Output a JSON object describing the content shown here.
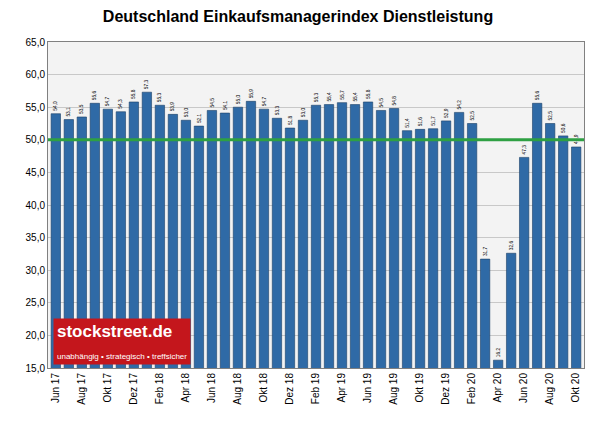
{
  "chart_data": {
    "type": "bar",
    "title": "Deutschland Einkaufsmanagerindex Dienstleistung",
    "categories": [
      "Jun 17",
      null,
      "Aug 17",
      null,
      "Okt 17",
      null,
      "Dez 17",
      null,
      "Feb 18",
      null,
      "Apr 18",
      null,
      "Jun 18",
      null,
      "Aug 18",
      null,
      "Okt 18",
      null,
      "Dez 18",
      null,
      "Feb 19",
      null,
      "Apr 19",
      null,
      "Jun 19",
      null,
      "Aug 19",
      null,
      "Okt 19",
      null,
      "Dez 19",
      null,
      "Feb 20",
      null,
      "Apr 20",
      null,
      "Jun 20",
      null,
      "Aug 20",
      null,
      "Okt 20"
    ],
    "values": [
      54.0,
      53.1,
      53.5,
      55.6,
      54.7,
      54.3,
      55.8,
      57.3,
      55.3,
      53.9,
      53.0,
      52.1,
      54.5,
      54.1,
      55.0,
      55.9,
      54.7,
      53.3,
      51.8,
      53.0,
      55.3,
      55.4,
      55.7,
      55.4,
      55.8,
      54.5,
      54.8,
      51.4,
      51.6,
      51.7,
      52.9,
      54.2,
      52.5,
      31.7,
      16.2,
      32.6,
      47.3,
      55.6,
      52.5,
      50.6,
      48.9
    ],
    "value_labels": [
      "54,0",
      "53,1",
      "53,5",
      "55,6",
      "54,7",
      "54,3",
      "55,8",
      "57,3",
      "55,3",
      "53,9",
      "53,0",
      "52,1",
      "54,5",
      "54,1",
      "55,0",
      "55,9",
      "54,7",
      "53,3",
      "51,8",
      "53,0",
      "55,3",
      "55,4",
      "55,7",
      "55,4",
      "55,8",
      "54,5",
      "54,8",
      "51,4",
      "51,6",
      "51,7",
      "52,9",
      "54,2",
      "52,5",
      "31,7",
      "16,2",
      "32,6",
      "47,3",
      "55,6",
      "52,5",
      "50,6",
      "48,9"
    ],
    "color": "#2f6aa6",
    "data_labels": true,
    "threshold": 50,
    "ylim": [
      15,
      65
    ],
    "yticks": [
      {
        "value": 15,
        "label": "15,0"
      },
      {
        "value": 20,
        "label": "20,0"
      },
      {
        "value": 25,
        "label": "25,0"
      },
      {
        "value": 30,
        "label": "30,0"
      },
      {
        "value": 35,
        "label": "35,0"
      },
      {
        "value": 40,
        "label": "40,0"
      },
      {
        "value": 45,
        "label": "45,0"
      },
      {
        "value": 50,
        "label": "50,0"
      },
      {
        "value": 55,
        "label": "55,0"
      },
      {
        "value": 60,
        "label": "60,0"
      },
      {
        "value": 65,
        "label": "65,0"
      }
    ],
    "grid": true,
    "logo": {
      "text": "stockstreet.de",
      "subtext": "unabhängig • strategisch • treffsicher"
    }
  }
}
